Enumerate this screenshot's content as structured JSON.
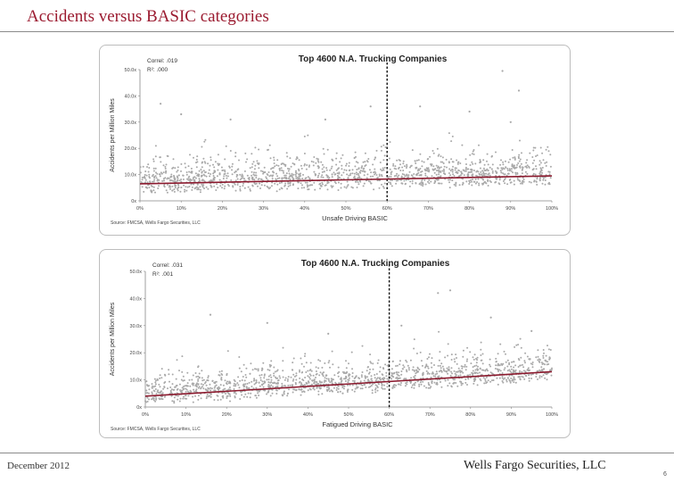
{
  "slide": {
    "title": "Accidents versus BASIC categories",
    "footer_date": "December 2012",
    "footer_firm": "Wells Fargo Securities, LLC",
    "page_number": "6"
  },
  "colors": {
    "title": "#9b1b30",
    "points": "#a9a9a9",
    "trend": "#8b1a2e",
    "threshold": "#111111"
  },
  "chart_data": [
    {
      "type": "scatter",
      "title": "Top 4600 N.A. Trucking Companies",
      "correl": "Correl: .019",
      "r2": "R²: .000",
      "xlabel": "Unsafe Driving BASIC",
      "ylabel": "Accidents per Million Miles",
      "source": "Source: FMCSA, Wells Fargo Securities, LLC",
      "x_ticks": [
        "0%",
        "10%",
        "20%",
        "30%",
        "40%",
        "50%",
        "60%",
        "70%",
        "80%",
        "90%",
        "100%"
      ],
      "y_ticks": [
        "0x",
        "10.0x",
        "20.0x",
        "30.0x",
        "40.0x",
        "50.0x"
      ],
      "xlim": [
        0,
        100
      ],
      "ylim": [
        0,
        50
      ],
      "threshold_x": 60,
      "trend_line": {
        "x": [
          0,
          100
        ],
        "y": [
          6.5,
          9.5
        ]
      },
      "n_points": 4600,
      "outliers": [
        [
          88,
          49.5
        ],
        [
          92,
          42
        ],
        [
          5,
          37
        ],
        [
          10,
          33
        ],
        [
          56,
          36
        ],
        [
          68,
          36
        ],
        [
          80,
          34
        ],
        [
          45,
          31
        ],
        [
          22,
          31
        ],
        [
          90,
          30
        ]
      ]
    },
    {
      "type": "scatter",
      "title": "Top 4600 N.A. Trucking Companies",
      "correl": "Correl: .031",
      "r2": "R²: .001",
      "xlabel": "Fatigued Driving BASIC",
      "ylabel": "Accidents per Million Miles",
      "source": "Source: FMCSA, Wells Fargo Securities, LLC",
      "x_ticks": [
        "0%",
        "10%",
        "20%",
        "30%",
        "40%",
        "50%",
        "60%",
        "70%",
        "80%",
        "90%",
        "100%"
      ],
      "y_ticks": [
        "0x",
        "10.0x",
        "20.0x",
        "30.0x",
        "40.0x",
        "50.0x"
      ],
      "xlim": [
        0,
        100
      ],
      "ylim": [
        0,
        50
      ],
      "threshold_x": 60,
      "trend_line": {
        "x": [
          0,
          100
        ],
        "y": [
          4,
          13
        ]
      },
      "n_points": 4600,
      "outliers": [
        [
          75,
          43
        ],
        [
          72,
          42
        ],
        [
          16,
          34
        ],
        [
          85,
          33
        ],
        [
          30,
          31
        ],
        [
          63,
          30
        ],
        [
          95,
          28
        ],
        [
          45,
          27
        ]
      ]
    }
  ]
}
